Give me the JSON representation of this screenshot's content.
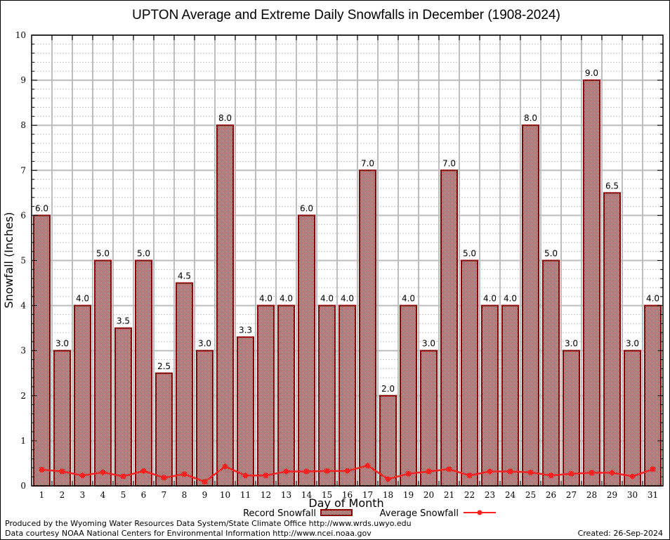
{
  "chart_data": {
    "type": "bar",
    "title": "UPTON Average and Extreme Daily Snowfalls in December (1908-2024)",
    "xlabel": "Day of Month",
    "ylabel": "Snowfall (Inches)",
    "ylim": [
      0,
      10
    ],
    "yticks": [
      0,
      1,
      2,
      3,
      4,
      5,
      6,
      7,
      8,
      9,
      10
    ],
    "y_minor_step": 0.2,
    "grid": true,
    "legend_position": "bottom-center",
    "categories": [
      "1",
      "2",
      "3",
      "4",
      "5",
      "6",
      "7",
      "8",
      "9",
      "10",
      "11",
      "12",
      "13",
      "14",
      "15",
      "16",
      "17",
      "18",
      "19",
      "20",
      "21",
      "22",
      "23",
      "24",
      "25",
      "26",
      "27",
      "28",
      "29",
      "30",
      "31"
    ],
    "series": [
      {
        "name": "Record Snowfall",
        "type": "bar",
        "color": "#8b0000",
        "values": [
          6.0,
          3.0,
          4.0,
          5.0,
          3.5,
          5.0,
          2.5,
          4.5,
          3.0,
          8.0,
          3.3,
          4.0,
          4.0,
          6.0,
          4.0,
          4.0,
          7.0,
          2.0,
          4.0,
          3.0,
          7.0,
          5.0,
          4.0,
          4.0,
          8.0,
          5.0,
          3.0,
          9.0,
          6.5,
          3.0,
          4.0
        ],
        "labels": [
          "6.0",
          "3.0",
          "4.0",
          "5.0",
          "3.5",
          "5.0",
          "2.5",
          "4.5",
          "3.0",
          "8.0",
          "3.3",
          "4.0",
          "4.0",
          "6.0",
          "4.0",
          "4.0",
          "7.0",
          "2.0",
          "4.0",
          "3.0",
          "7.0",
          "5.0",
          "4.0",
          "4.0",
          "8.0",
          "5.0",
          "3.0",
          "9.0",
          "6.5",
          "3.0",
          "4.0"
        ]
      },
      {
        "name": "Average Snowfall",
        "type": "line",
        "color": "#ff2020",
        "values": [
          0.36,
          0.32,
          0.23,
          0.3,
          0.21,
          0.33,
          0.18,
          0.26,
          0.09,
          0.43,
          0.23,
          0.23,
          0.32,
          0.32,
          0.33,
          0.33,
          0.45,
          0.15,
          0.27,
          0.32,
          0.37,
          0.23,
          0.32,
          0.32,
          0.3,
          0.23,
          0.27,
          0.29,
          0.29,
          0.21,
          0.37
        ]
      }
    ]
  },
  "footer": {
    "line1": "Produced by the Wyoming Water Resources Data System/State Climate Office http://www.wrds.uwyo.edu",
    "line2": "Data courtesy NOAA National Centers for Environmental Information http://www.ncei.noaa.gov",
    "created": "Created: 26-Sep-2024"
  }
}
